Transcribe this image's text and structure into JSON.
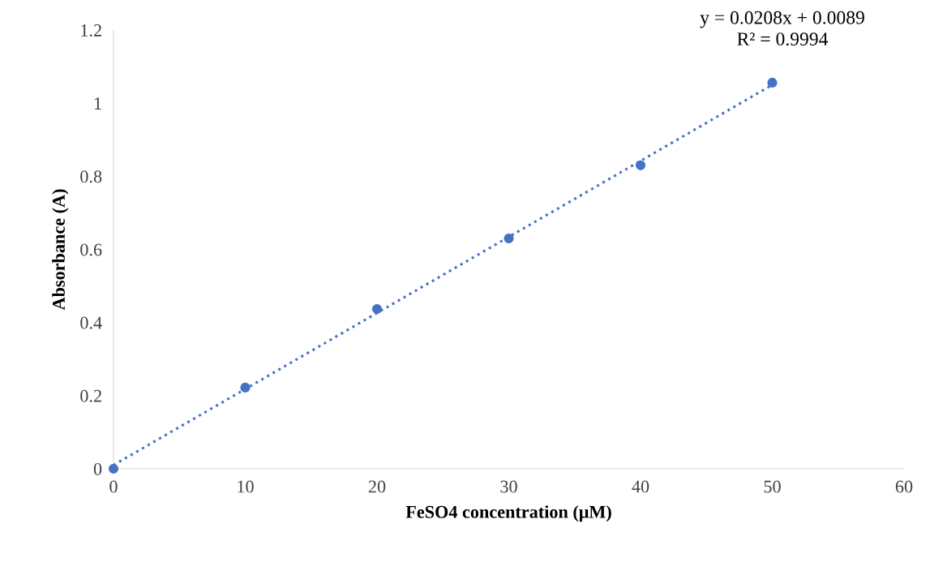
{
  "chart_data": {
    "type": "scatter",
    "xlabel": "FeSO4 concentration (μM)",
    "ylabel": "Absorbance (A)",
    "xlim": [
      0,
      60
    ],
    "xticks": [
      0,
      10,
      20,
      30,
      40,
      50,
      60
    ],
    "ylim": [
      0,
      1.2
    ],
    "yticks": [
      0,
      {
        "value": 0.2,
        "label": "0.2"
      },
      {
        "value": 0.4,
        "label": "0.4"
      },
      {
        "value": 0.6,
        "label": "0.6"
      },
      {
        "value": 0.8,
        "label": "0.8"
      },
      1,
      {
        "value": 1.2,
        "label": "1.2"
      }
    ],
    "grid": false,
    "legend": false,
    "series": [
      {
        "color": "#4472c4",
        "marker": "circle",
        "x": [
          0,
          10,
          20,
          30,
          40,
          50
        ],
        "values": [
          0,
          0.222,
          0.437,
          0.63,
          0.83,
          1.056
        ]
      },
      {
        "type": "line",
        "color": "#4472c4",
        "marker": "none",
        "line_style": "dotted",
        "x": [
          0,
          50
        ],
        "values": [
          0.01,
          1.05
        ]
      }
    ],
    "annotations": [
      "y = 0.0208x + 0.0089",
      "R² = 0.9994"
    ]
  }
}
